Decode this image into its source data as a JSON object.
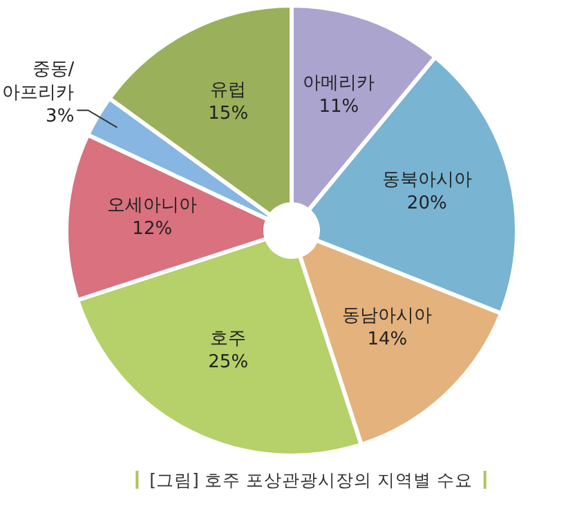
{
  "chart_data": {
    "type": "pie",
    "categories": [
      "아메리카",
      "동북아시아",
      "동남아시아",
      "호주",
      "오세아니아",
      "중동/아프리카",
      "유럽"
    ],
    "values": [
      11,
      20,
      14,
      25,
      12,
      3,
      15
    ],
    "value_labels": [
      "11%",
      "20%",
      "14%",
      "25%",
      "12%",
      "3%",
      "15%"
    ],
    "colors": [
      "#aaa4cf",
      "#79b4d2",
      "#e4b27c",
      "#b6d06a",
      "#d9717f",
      "#88b6e2",
      "#9bb05a"
    ],
    "annotations": [
      "[그림] 호주 포상관광시장의 지역별 수요"
    ]
  }
}
